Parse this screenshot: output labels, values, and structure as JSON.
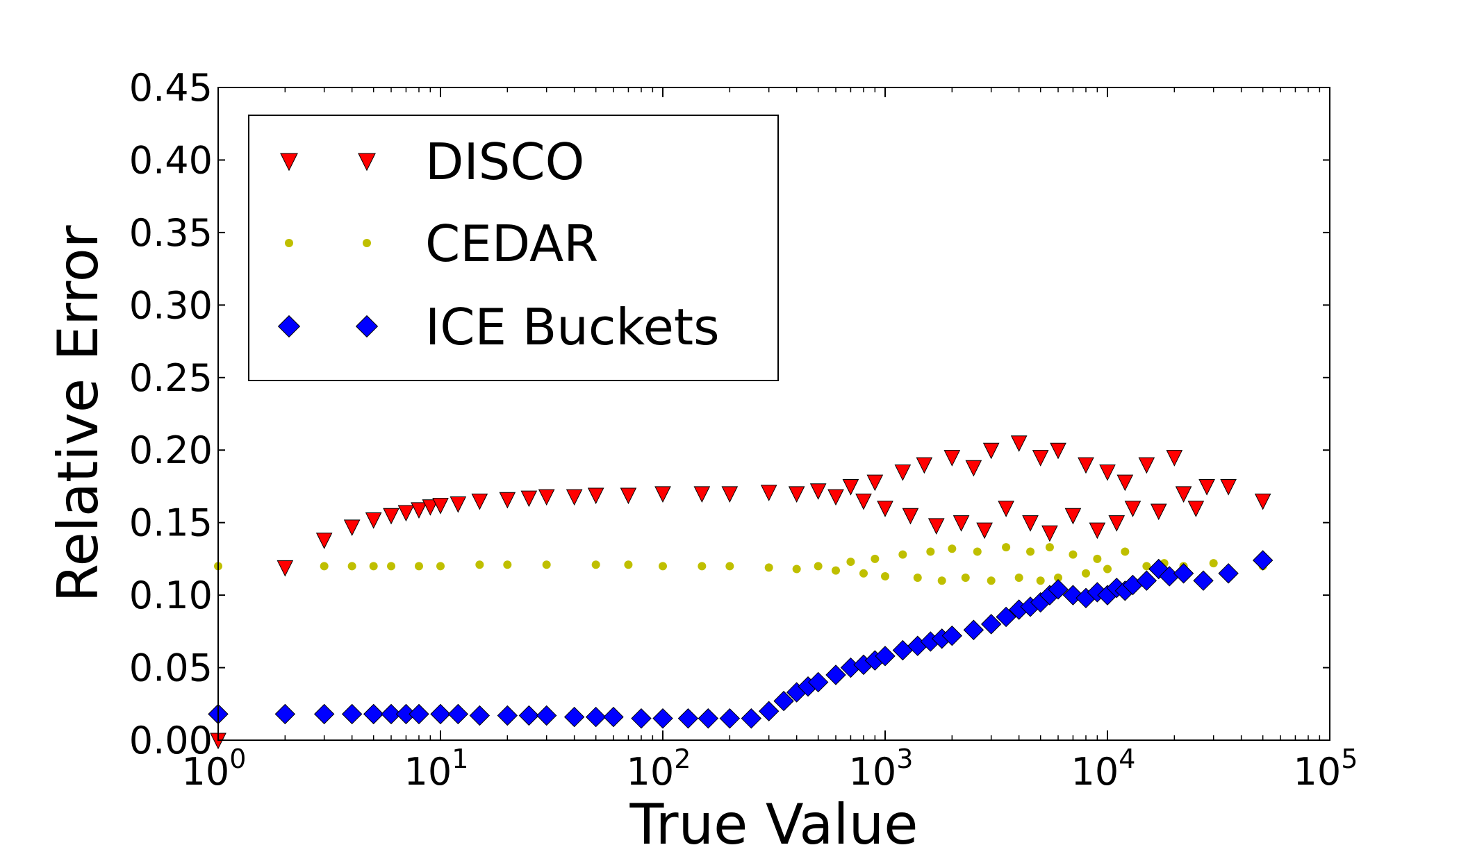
{
  "chart_data": {
    "type": "scatter",
    "title": "",
    "xlabel": "True Value",
    "ylabel": "Relative Error",
    "xscale": "log",
    "xlim": [
      1,
      100000
    ],
    "ylim": [
      0.0,
      0.45
    ],
    "grid": false,
    "legend_position": "top-left",
    "x_ticks": [
      {
        "value": 1,
        "base": "10",
        "exp": "0"
      },
      {
        "value": 10,
        "base": "10",
        "exp": "1"
      },
      {
        "value": 100,
        "base": "10",
        "exp": "2"
      },
      {
        "value": 1000,
        "base": "10",
        "exp": "3"
      },
      {
        "value": 10000,
        "base": "10",
        "exp": "4"
      },
      {
        "value": 100000,
        "base": "10",
        "exp": "5"
      }
    ],
    "y_ticks": [
      {
        "value": 0.0,
        "label": "0.00"
      },
      {
        "value": 0.05,
        "label": "0.05"
      },
      {
        "value": 0.1,
        "label": "0.10"
      },
      {
        "value": 0.15,
        "label": "0.15"
      },
      {
        "value": 0.2,
        "label": "0.20"
      },
      {
        "value": 0.25,
        "label": "0.25"
      },
      {
        "value": 0.3,
        "label": "0.30"
      },
      {
        "value": 0.35,
        "label": "0.35"
      },
      {
        "value": 0.4,
        "label": "0.40"
      },
      {
        "value": 0.45,
        "label": "0.45"
      }
    ],
    "series": [
      {
        "name": "DISCO",
        "marker": "triangle-down",
        "color": "#ff0000",
        "points": [
          [
            1,
            0.0
          ],
          [
            2,
            0.119
          ],
          [
            3,
            0.138
          ],
          [
            4,
            0.147
          ],
          [
            5,
            0.152
          ],
          [
            6,
            0.155
          ],
          [
            7,
            0.157
          ],
          [
            8,
            0.159
          ],
          [
            9,
            0.161
          ],
          [
            10,
            0.162
          ],
          [
            12,
            0.163
          ],
          [
            15,
            0.165
          ],
          [
            20,
            0.166
          ],
          [
            25,
            0.167
          ],
          [
            30,
            0.168
          ],
          [
            40,
            0.168
          ],
          [
            50,
            0.169
          ],
          [
            70,
            0.169
          ],
          [
            100,
            0.17
          ],
          [
            150,
            0.17
          ],
          [
            200,
            0.17
          ],
          [
            300,
            0.171
          ],
          [
            400,
            0.17
          ],
          [
            500,
            0.172
          ],
          [
            600,
            0.168
          ],
          [
            700,
            0.175
          ],
          [
            800,
            0.165
          ],
          [
            900,
            0.178
          ],
          [
            1000,
            0.16
          ],
          [
            1200,
            0.185
          ],
          [
            1300,
            0.155
          ],
          [
            1500,
            0.19
          ],
          [
            1700,
            0.148
          ],
          [
            2000,
            0.195
          ],
          [
            2200,
            0.15
          ],
          [
            2500,
            0.188
          ],
          [
            2800,
            0.145
          ],
          [
            3000,
            0.2
          ],
          [
            3500,
            0.16
          ],
          [
            4000,
            0.205
          ],
          [
            4500,
            0.15
          ],
          [
            5000,
            0.195
          ],
          [
            5500,
            0.143
          ],
          [
            6000,
            0.2
          ],
          [
            7000,
            0.155
          ],
          [
            8000,
            0.19
          ],
          [
            9000,
            0.145
          ],
          [
            10000,
            0.185
          ],
          [
            11000,
            0.15
          ],
          [
            12000,
            0.178
          ],
          [
            13000,
            0.16
          ],
          [
            15000,
            0.19
          ],
          [
            17000,
            0.158
          ],
          [
            20000,
            0.195
          ],
          [
            22000,
            0.17
          ],
          [
            25000,
            0.16
          ],
          [
            28000,
            0.175
          ],
          [
            35000,
            0.175
          ],
          [
            50000,
            0.165
          ]
        ]
      },
      {
        "name": "CEDAR",
        "marker": "circle",
        "color": "#bfbf00",
        "points": [
          [
            1,
            0.12
          ],
          [
            2,
            0.12
          ],
          [
            3,
            0.12
          ],
          [
            4,
            0.12
          ],
          [
            5,
            0.12
          ],
          [
            6,
            0.12
          ],
          [
            8,
            0.12
          ],
          [
            10,
            0.12
          ],
          [
            15,
            0.121
          ],
          [
            20,
            0.121
          ],
          [
            30,
            0.121
          ],
          [
            50,
            0.121
          ],
          [
            70,
            0.121
          ],
          [
            100,
            0.12
          ],
          [
            150,
            0.12
          ],
          [
            200,
            0.12
          ],
          [
            300,
            0.119
          ],
          [
            400,
            0.118
          ],
          [
            500,
            0.12
          ],
          [
            600,
            0.117
          ],
          [
            700,
            0.123
          ],
          [
            800,
            0.115
          ],
          [
            900,
            0.125
          ],
          [
            1000,
            0.113
          ],
          [
            1200,
            0.128
          ],
          [
            1400,
            0.112
          ],
          [
            1600,
            0.13
          ],
          [
            1800,
            0.11
          ],
          [
            2000,
            0.132
          ],
          [
            2300,
            0.112
          ],
          [
            2600,
            0.13
          ],
          [
            3000,
            0.11
          ],
          [
            3500,
            0.133
          ],
          [
            4000,
            0.112
          ],
          [
            4500,
            0.13
          ],
          [
            5000,
            0.11
          ],
          [
            5500,
            0.133
          ],
          [
            6000,
            0.112
          ],
          [
            7000,
            0.128
          ],
          [
            8000,
            0.115
          ],
          [
            9000,
            0.125
          ],
          [
            10000,
            0.118
          ],
          [
            12000,
            0.13
          ],
          [
            15000,
            0.12
          ],
          [
            18000,
            0.122
          ],
          [
            22000,
            0.12
          ],
          [
            30000,
            0.122
          ],
          [
            50000,
            0.12
          ]
        ]
      },
      {
        "name": "ICE Buckets",
        "marker": "diamond",
        "color": "#0000ff",
        "points": [
          [
            1,
            0.018
          ],
          [
            2,
            0.018
          ],
          [
            3,
            0.018
          ],
          [
            4,
            0.018
          ],
          [
            5,
            0.018
          ],
          [
            6,
            0.018
          ],
          [
            7,
            0.018
          ],
          [
            8,
            0.018
          ],
          [
            10,
            0.018
          ],
          [
            12,
            0.018
          ],
          [
            15,
            0.017
          ],
          [
            20,
            0.017
          ],
          [
            25,
            0.017
          ],
          [
            30,
            0.017
          ],
          [
            40,
            0.016
          ],
          [
            50,
            0.016
          ],
          [
            60,
            0.016
          ],
          [
            80,
            0.015
          ],
          [
            100,
            0.015
          ],
          [
            130,
            0.015
          ],
          [
            160,
            0.015
          ],
          [
            200,
            0.015
          ],
          [
            250,
            0.015
          ],
          [
            300,
            0.02
          ],
          [
            350,
            0.027
          ],
          [
            400,
            0.033
          ],
          [
            450,
            0.037
          ],
          [
            500,
            0.04
          ],
          [
            600,
            0.045
          ],
          [
            700,
            0.05
          ],
          [
            800,
            0.052
          ],
          [
            900,
            0.055
          ],
          [
            1000,
            0.058
          ],
          [
            1200,
            0.062
          ],
          [
            1400,
            0.065
          ],
          [
            1600,
            0.068
          ],
          [
            1800,
            0.07
          ],
          [
            2000,
            0.072
          ],
          [
            2500,
            0.076
          ],
          [
            3000,
            0.08
          ],
          [
            3500,
            0.085
          ],
          [
            4000,
            0.09
          ],
          [
            4500,
            0.092
          ],
          [
            5000,
            0.095
          ],
          [
            5500,
            0.1
          ],
          [
            6000,
            0.104
          ],
          [
            7000,
            0.1
          ],
          [
            8000,
            0.098
          ],
          [
            9000,
            0.102
          ],
          [
            10000,
            0.1
          ],
          [
            11000,
            0.105
          ],
          [
            12000,
            0.103
          ],
          [
            13000,
            0.107
          ],
          [
            15000,
            0.11
          ],
          [
            17000,
            0.118
          ],
          [
            19000,
            0.113
          ],
          [
            22000,
            0.115
          ],
          [
            27000,
            0.11
          ],
          [
            35000,
            0.115
          ],
          [
            50000,
            0.124
          ]
        ]
      }
    ]
  }
}
